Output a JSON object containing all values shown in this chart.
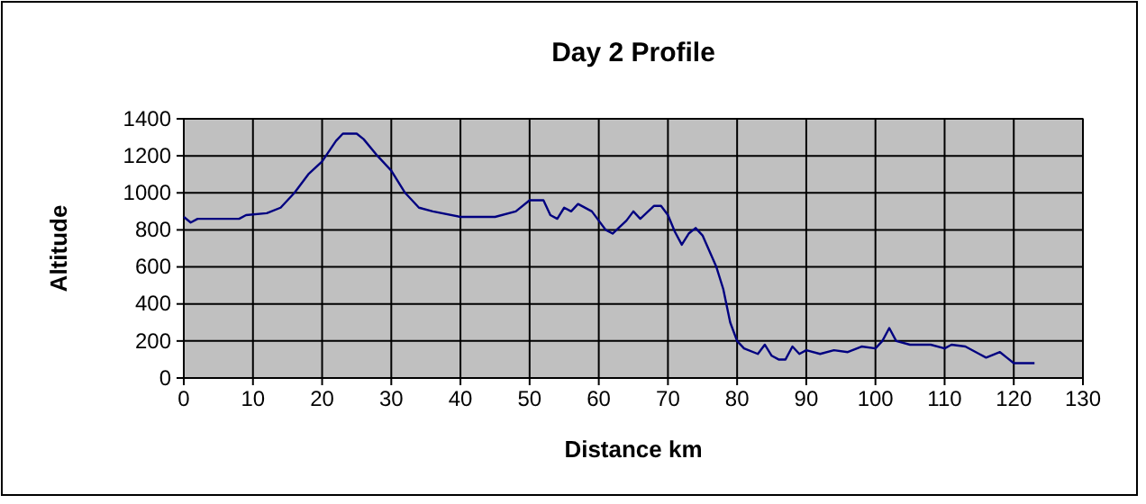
{
  "chart_data": {
    "type": "line",
    "title": "Day 2 Profile",
    "xlabel": "Distance km",
    "ylabel": "Altitude",
    "x": [
      0,
      1,
      2,
      8,
      9,
      12,
      14,
      16,
      18,
      20,
      22,
      23,
      25,
      26,
      28,
      30,
      32,
      34,
      36,
      40,
      45,
      48,
      50,
      52,
      53,
      54,
      55,
      56,
      57,
      59,
      61,
      62,
      64,
      65,
      66,
      68,
      69,
      70,
      71,
      72,
      73,
      74,
      75,
      77,
      78,
      79,
      80,
      81,
      83,
      84,
      85,
      86,
      87,
      88,
      89,
      90,
      92,
      94,
      96,
      98,
      100,
      101,
      102,
      103,
      105,
      108,
      110,
      111,
      113,
      115,
      116,
      118,
      119,
      120,
      123
    ],
    "series": [
      {
        "color": "#000080",
        "values": [
          870,
          840,
          860,
          860,
          880,
          890,
          920,
          1000,
          1100,
          1170,
          1280,
          1320,
          1320,
          1290,
          1200,
          1120,
          1000,
          920,
          900,
          870,
          870,
          900,
          960,
          960,
          880,
          860,
          920,
          900,
          940,
          900,
          800,
          780,
          850,
          900,
          860,
          930,
          930,
          880,
          790,
          720,
          780,
          810,
          770,
          600,
          480,
          300,
          200,
          160,
          130,
          180,
          120,
          100,
          100,
          170,
          130,
          150,
          130,
          150,
          140,
          170,
          160,
          200,
          270,
          200,
          180,
          180,
          160,
          180,
          170,
          130,
          110,
          140,
          110,
          80,
          80
        ]
      }
    ],
    "xlim": [
      0,
      130
    ],
    "xticks": [
      0,
      10,
      20,
      30,
      40,
      50,
      60,
      70,
      80,
      90,
      100,
      110,
      120,
      130
    ],
    "ylim": [
      0,
      1400
    ],
    "yticks": [
      0,
      200,
      400,
      600,
      800,
      1000,
      1200,
      1400
    ],
    "grid": true,
    "marker": "none",
    "line_style": "solid"
  }
}
